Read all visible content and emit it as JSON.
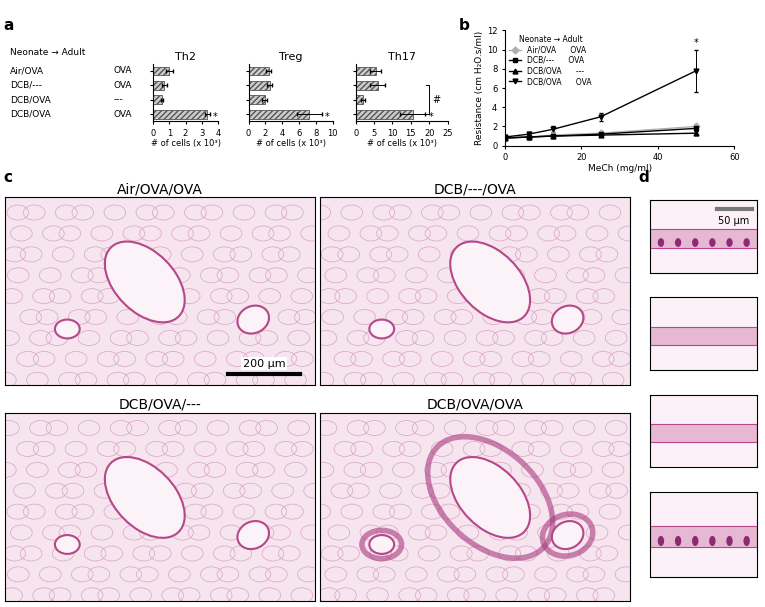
{
  "panel_labels": [
    "a",
    "b",
    "c",
    "d"
  ],
  "chart_data": [
    {
      "type": "bar",
      "orientation": "horizontal",
      "title": "Th2",
      "header": "Neonate → Adult",
      "categories": [
        "Air/OVA",
        "DCB/---",
        "DCB/OVA",
        "DCB/OVA"
      ],
      "adult": [
        "OVA",
        "OVA",
        "---",
        "OVA"
      ],
      "values": [
        1.0,
        0.7,
        0.55,
        3.35
      ],
      "errors": [
        0.2,
        0.15,
        0.05,
        0.15
      ],
      "significance": [
        null,
        null,
        null,
        "*"
      ],
      "xlabel": "# of cells (x 10³)",
      "xlim": [
        0,
        4
      ],
      "xticks": [
        0,
        1,
        2,
        3,
        4
      ],
      "color": "#cccccc",
      "tick_labels": "x"
    },
    {
      "type": "bar",
      "orientation": "horizontal",
      "title": "Treg",
      "values": [
        2.4,
        2.5,
        1.9,
        7.2
      ],
      "errors": [
        0.3,
        0.3,
        0.3,
        1.5
      ],
      "significance": [
        null,
        null,
        null,
        "*"
      ],
      "xlabel": "# of cells (x 10³)",
      "xlim": [
        0,
        10
      ],
      "xticks": [
        0,
        2,
        4,
        6,
        8,
        10
      ],
      "color": "#cccccc",
      "tick_labels": "x"
    },
    {
      "type": "bar",
      "orientation": "horizontal",
      "title": "Th17",
      "values": [
        5.5,
        6.0,
        2.0,
        15.5
      ],
      "errors": [
        1.5,
        2.0,
        0.5,
        3.5
      ],
      "significance": [
        null,
        null,
        null,
        "*"
      ],
      "bracket": {
        "label": "#",
        "from": 1,
        "to": 3
      },
      "xlabel": "# of cells (x 10³)",
      "xlim": [
        0,
        25
      ],
      "xticks": [
        0,
        5,
        10,
        15,
        20,
        25
      ],
      "color": "#cccccc",
      "tick_labels": "x"
    },
    {
      "type": "line",
      "xlabel": "MeCh (mg/ml)",
      "ylabel": "Resistance (cm H₂O.s/ml)",
      "x": [
        0,
        6.25,
        12.5,
        25,
        50
      ],
      "xlim": [
        0,
        60
      ],
      "xticks": [
        0,
        20,
        40,
        60
      ],
      "ylim": [
        0,
        12
      ],
      "yticks": [
        0,
        2,
        4,
        6,
        8,
        10,
        12
      ],
      "legend": "upper left",
      "legend_title": "Neonate → Adult",
      "series": [
        {
          "name": "Air/OVA      OVA",
          "color": "#b0b0b0",
          "marker": "diamond",
          "values": [
            0.8,
            0.9,
            1.1,
            1.3,
            2.0
          ],
          "errors": [
            0.1,
            0.1,
            0.1,
            0.2,
            0.3
          ],
          "significance": [
            null,
            null,
            null,
            null,
            null
          ]
        },
        {
          "name": "DCB/---      OVA",
          "color": "#000000",
          "marker": "square",
          "values": [
            0.8,
            0.9,
            1.0,
            1.2,
            1.8
          ],
          "errors": [
            0.1,
            0.1,
            0.1,
            0.2,
            0.3
          ],
          "significance": [
            null,
            null,
            null,
            null,
            null
          ]
        },
        {
          "name": "DCB/OVA      ---",
          "color": "#000000",
          "marker": "triangle",
          "values": [
            0.8,
            0.9,
            1.0,
            1.1,
            1.3
          ],
          "errors": [
            0.1,
            0.1,
            0.1,
            0.1,
            0.2
          ],
          "significance": [
            null,
            null,
            null,
            null,
            null
          ]
        },
        {
          "name": "DCB/OVA      OVA",
          "color": "#000000",
          "marker": "triangle_down",
          "values": [
            0.9,
            1.2,
            1.7,
            3.0,
            7.8
          ],
          "errors": [
            0.1,
            0.2,
            0.3,
            0.4,
            2.2
          ],
          "significance": [
            null,
            null,
            null,
            null,
            "*"
          ]
        }
      ]
    }
  ],
  "histology": {
    "c": {
      "titles": [
        "Air/OVA/OVA",
        "DCB/---/OVA",
        "DCB/OVA/---",
        "DCB/OVA/OVA"
      ],
      "scale_bar": "200 µm"
    },
    "d": {
      "scale_bar": "50 µm"
    }
  }
}
